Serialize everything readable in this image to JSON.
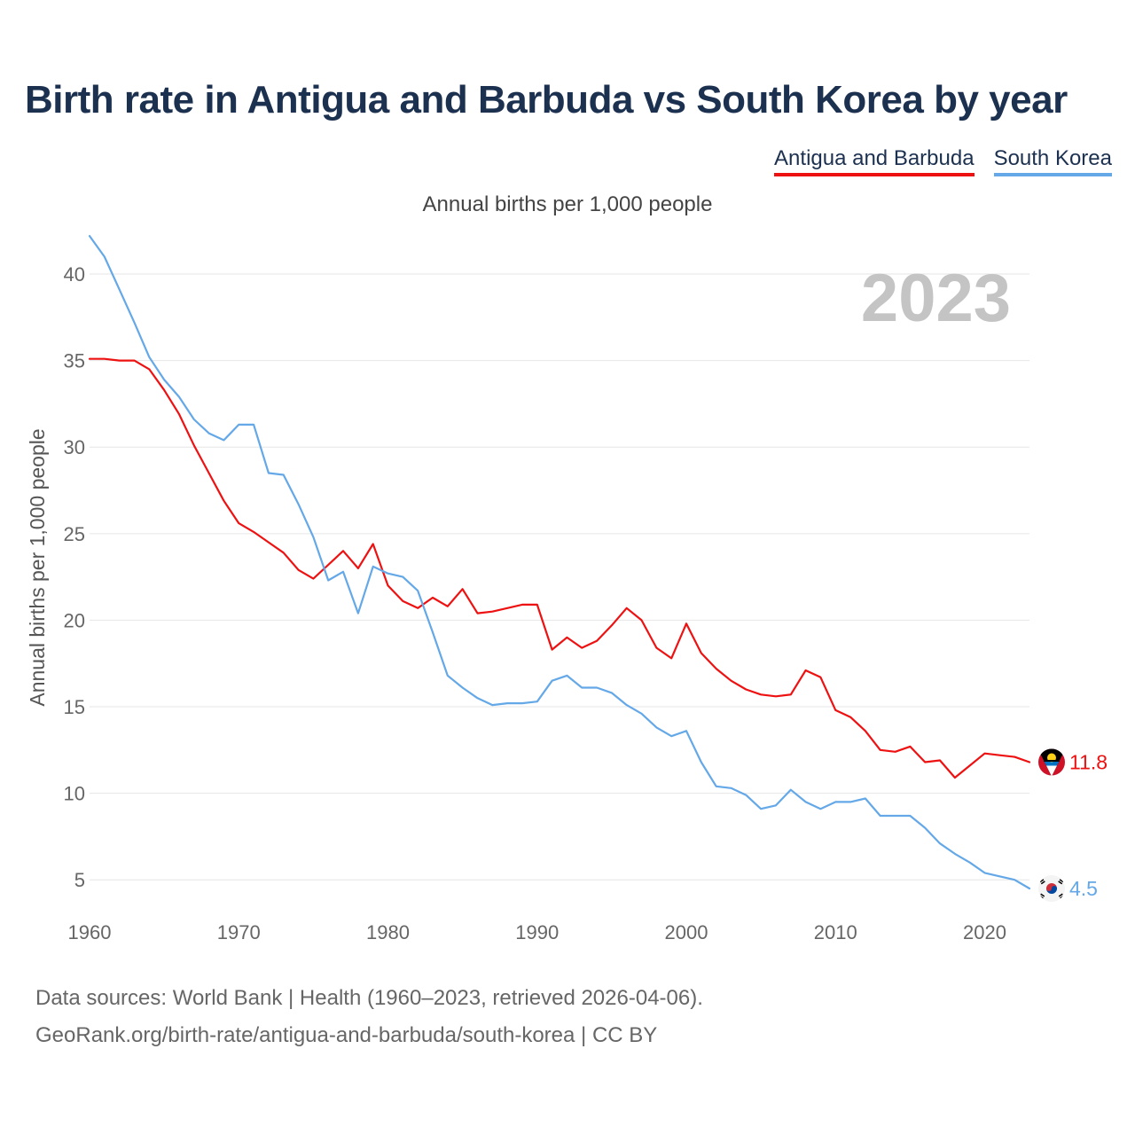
{
  "title": "Birth rate in Antigua and Barbuda vs South Korea by year",
  "subtitle": "Annual births per 1,000 people",
  "footer": {
    "line1": "Data sources: World Bank | Health (1960–2023, retrieved 2026-04-06).",
    "line2": "GeoRank.org/birth-rate/antigua-and-barbuda/south-korea | CC BY"
  },
  "chart_data": {
    "type": "line",
    "title": "Birth rate in Antigua and Barbuda vs South Korea by year",
    "ylabel": "Annual births per 1,000 people",
    "xlabel": "",
    "year_label": "2023",
    "xlim": [
      1960,
      2023
    ],
    "ylim": [
      2.5,
      42
    ],
    "x_ticks": [
      1960,
      1970,
      1980,
      1990,
      2000,
      2010,
      2020
    ],
    "y_ticks": [
      5,
      10,
      15,
      20,
      25,
      30,
      35,
      40
    ],
    "grid": true,
    "legend_position": "top-right",
    "x": [
      1960,
      1961,
      1962,
      1963,
      1964,
      1965,
      1966,
      1967,
      1968,
      1969,
      1970,
      1971,
      1972,
      1973,
      1974,
      1975,
      1976,
      1977,
      1978,
      1979,
      1980,
      1981,
      1982,
      1983,
      1984,
      1985,
      1986,
      1987,
      1988,
      1989,
      1990,
      1991,
      1992,
      1993,
      1994,
      1995,
      1996,
      1997,
      1998,
      1999,
      2000,
      2001,
      2002,
      2003,
      2004,
      2005,
      2006,
      2007,
      2008,
      2009,
      2010,
      2011,
      2012,
      2013,
      2014,
      2015,
      2016,
      2017,
      2018,
      2019,
      2020,
      2021,
      2022,
      2023
    ],
    "series": [
      {
        "name": "Antigua and Barbuda",
        "color": "#ee1111",
        "end_label": "11.8",
        "values": [
          35.1,
          35.1,
          35.0,
          35.0,
          34.5,
          33.3,
          31.9,
          30.1,
          28.5,
          26.9,
          25.6,
          25.1,
          24.5,
          23.9,
          22.9,
          22.4,
          23.2,
          24.0,
          23.0,
          24.4,
          22.0,
          21.1,
          20.7,
          21.3,
          20.8,
          21.8,
          20.4,
          20.5,
          20.7,
          20.9,
          20.9,
          18.3,
          19.0,
          18.4,
          18.8,
          19.7,
          20.7,
          20.0,
          18.4,
          17.8,
          19.8,
          18.1,
          17.2,
          16.5,
          16.0,
          15.7,
          15.6,
          15.7,
          17.1,
          16.7,
          14.8,
          14.4,
          13.6,
          12.5,
          12.4,
          12.7,
          11.8,
          11.9,
          10.9,
          11.6,
          12.3,
          12.2,
          12.1,
          11.8
        ]
      },
      {
        "name": "South Korea",
        "color": "#64a8e8",
        "end_label": "4.5",
        "values": [
          42.2,
          41.0,
          39.1,
          37.2,
          35.2,
          33.9,
          32.9,
          31.6,
          30.8,
          30.4,
          31.3,
          31.3,
          28.5,
          28.4,
          26.7,
          24.8,
          22.3,
          22.8,
          20.4,
          23.1,
          22.7,
          22.5,
          21.7,
          19.3,
          16.8,
          16.1,
          15.5,
          15.1,
          15.2,
          15.2,
          15.3,
          16.5,
          16.8,
          16.1,
          16.1,
          15.8,
          15.1,
          14.6,
          13.8,
          13.3,
          13.6,
          11.8,
          10.4,
          10.3,
          9.9,
          9.1,
          9.3,
          10.2,
          9.5,
          9.1,
          9.5,
          9.5,
          9.7,
          8.7,
          8.7,
          8.7,
          8.0,
          7.1,
          6.5,
          6.0,
          5.4,
          5.2,
          5.0,
          4.5
        ]
      }
    ]
  }
}
